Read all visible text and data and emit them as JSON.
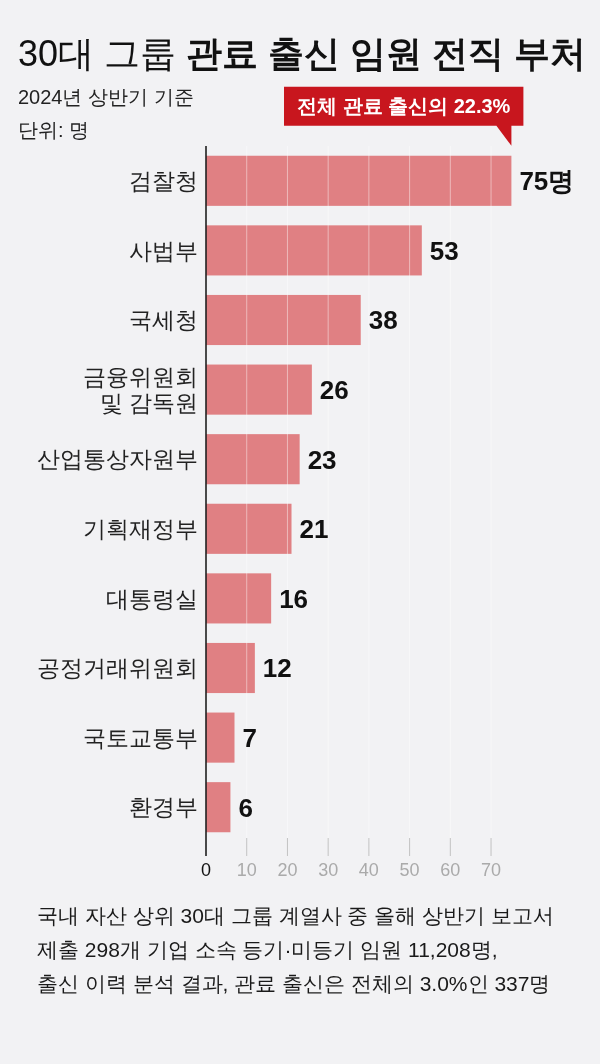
{
  "chart_data": {
    "type": "bar",
    "orientation": "horizontal",
    "title": "30대 그룹 **관료 출신 임원 전직 부처**",
    "subtitle": "2024년 상반기 기준",
    "annotations": [
      "단위: 명",
      "전체 관료 출신의 22.3%",
      "국내 자산 상위 30대 그룹 계열사 중 올해 상반기 보고서\n제출 298개 기업 소속 등기·미등기 임원 11,208명,\n출신 이력 분석 결과, 관료 출신은 전체의 3.0%인 337명"
    ],
    "categories": [
      "검찰청",
      "사법부",
      "국세청",
      "금융위원회 및 감독원",
      "산업통상자원부",
      "기획재정부",
      "대통령실",
      "공정거래위원회",
      "국토교통부",
      "환경부"
    ],
    "values": [
      75,
      53,
      38,
      26,
      23,
      21,
      16,
      12,
      7,
      6
    ],
    "value_labels": [
      "75명",
      "53",
      "38",
      "26",
      "23",
      "21",
      "16",
      "12",
      "7",
      "6"
    ],
    "color": "#e08083",
    "xlim": [
      0,
      75
    ],
    "xticks": [
      0,
      10,
      20,
      30,
      40,
      50,
      60,
      70
    ],
    "grid": "x"
  }
}
